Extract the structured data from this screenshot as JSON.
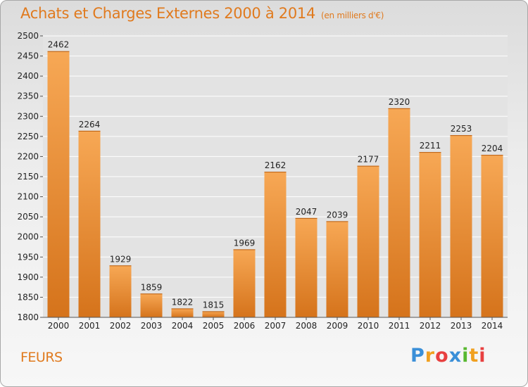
{
  "title": "Achats et Charges Externes 2000 à 2014",
  "subtitle": "(en milliers d'€)",
  "location": "FEURS",
  "logo": "Proxiti",
  "colors": {
    "bar_light": "#f7a855",
    "bar_dark": "#d5731b",
    "title": "#e07a1e",
    "grid": "#ffffff"
  },
  "chart_data": {
    "type": "bar",
    "title": "Achats et Charges Externes 2000 à 2014",
    "subtitle": "(en milliers d'€)",
    "categories": [
      "2000",
      "2001",
      "2002",
      "2003",
      "2004",
      "2005",
      "2006",
      "2007",
      "2008",
      "2009",
      "2010",
      "2011",
      "2012",
      "2013",
      "2014"
    ],
    "values": [
      2462,
      2264,
      1929,
      1859,
      1822,
      1815,
      1969,
      2162,
      2047,
      2039,
      2177,
      2320,
      2211,
      2253,
      2204
    ],
    "xlabel": "",
    "ylabel": "",
    "ylim": [
      1800,
      2500
    ],
    "yticks": [
      1800,
      1850,
      1900,
      1950,
      2000,
      2050,
      2100,
      2150,
      2200,
      2250,
      2300,
      2350,
      2400,
      2450,
      2500
    ],
    "grid": true,
    "legend": "none"
  }
}
